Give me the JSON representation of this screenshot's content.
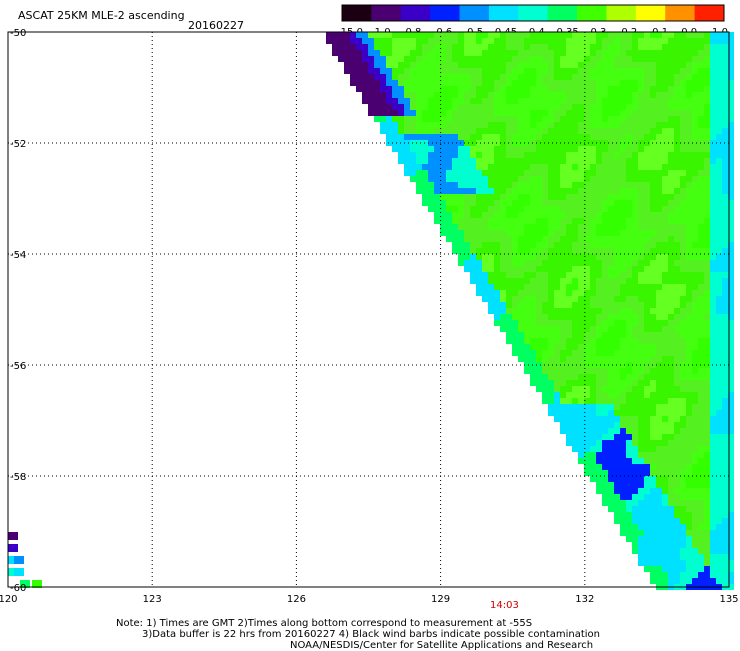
{
  "title": "ASCAT 25KM MLE-2 ascending",
  "date": "20160227",
  "colorbar": {
    "labels": [
      "-15.0",
      "-1.0",
      "-0.8",
      "-0.6",
      "-0.5",
      "-0.45",
      "-0.4",
      "-0.35",
      "-0.3",
      "-0.2",
      "-0.1",
      "0.0",
      "1.0"
    ],
    "colors": [
      "#1a0010",
      "#4b0072",
      "#3a00c8",
      "#0020ff",
      "#0090ff",
      "#00e0ff",
      "#00ffd0",
      "#00ff60",
      "#40ff00",
      "#b0ff00",
      "#ffff00",
      "#ff9000",
      "#ff2000"
    ]
  },
  "map": {
    "lon_ticks": [
      "120",
      "123",
      "126",
      "129",
      "132",
      "135"
    ],
    "lat_ticks": [
      "-50",
      "-52",
      "-54",
      "-56",
      "-58",
      "-60"
    ],
    "lon_range": [
      120,
      135
    ],
    "lat_range": [
      -60,
      -50
    ]
  },
  "time_label": "14:03",
  "notes": {
    "line1": "Note: 1) Times are GMT 2)Times along bottom correspond to measurement at -55S",
    "line2": "3)Data buffer is 22 hrs from 20160227 4) Black wind barbs indicate possible contamination",
    "line3": "NOAA/NESDIS/Center for Satellite Applications and Research"
  }
}
